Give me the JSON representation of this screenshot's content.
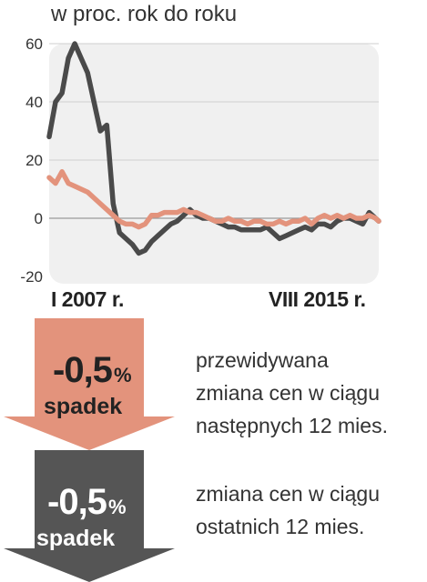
{
  "subtitle": "w proc. rok do roku",
  "colors": {
    "dark_series": "#4a4a4a",
    "light_series": "#e3937c",
    "plot_bg": "#f0f0f0",
    "arrow_pink": "#e3937c",
    "arrow_dark": "#555555"
  },
  "chart_data": {
    "type": "line",
    "title": "",
    "ylabel": "w proc. rok do roku",
    "ylim": [
      -20,
      60
    ],
    "yticks": [
      -20,
      0,
      20,
      40,
      60
    ],
    "ytick_labels": [
      "-20",
      "0",
      "20",
      "40",
      "60"
    ],
    "grid": true,
    "x_start_label": "I 2007 r.",
    "x_end_label": "VIII 2015 r.",
    "x": [
      0,
      2,
      4,
      6,
      8,
      10,
      12,
      14,
      16,
      18,
      20,
      22,
      24,
      26,
      28,
      30,
      32,
      34,
      36,
      38,
      40,
      42,
      44,
      46,
      48,
      50,
      52,
      54,
      56,
      58,
      60,
      62,
      64,
      66,
      68,
      70,
      72,
      74,
      76,
      78,
      80,
      82,
      84,
      86,
      88,
      90,
      92,
      94,
      96,
      98,
      100,
      102,
      103
    ],
    "series": [
      {
        "values": [
          28,
          40,
          43,
          55,
          60,
          55,
          50,
          40,
          30,
          32,
          5,
          -5,
          -7,
          -9,
          -12,
          -11,
          -8,
          -6,
          -4,
          -2,
          -1,
          1,
          3,
          1,
          0,
          0,
          -1,
          -2,
          -3,
          -3,
          -4,
          -4,
          -4,
          -4,
          -3,
          -5,
          -7,
          -6,
          -5,
          -4,
          -3,
          -4,
          -2,
          -2,
          -3,
          -1,
          0,
          0,
          -1,
          -2,
          2,
          0,
          -1
        ]
      },
      {
        "values": [
          14,
          12,
          16,
          12,
          11,
          10,
          9,
          7,
          5,
          3,
          1,
          -1,
          -2,
          -2,
          -3,
          -2,
          1,
          1,
          2,
          2,
          2,
          3,
          2,
          2,
          1,
          0,
          -1,
          -1,
          0,
          -1,
          -1,
          -2,
          -1,
          -1,
          -2,
          -2,
          -1,
          -2,
          -1,
          -1,
          0,
          -2,
          0,
          1,
          0,
          1,
          0,
          1,
          0,
          0,
          1,
          0,
          -1
        ]
      }
    ]
  },
  "badges": [
    {
      "value": "-0,5",
      "unit": "%",
      "word": "spadek",
      "description_lines": [
        "przewidywana",
        "zmiana cen w ciągu",
        "następnych 12 mies."
      ]
    },
    {
      "value": "-0,5",
      "unit": "%",
      "word": "spadek",
      "description_lines": [
        "zmiana cen w ciągu",
        "ostatnich 12 mies."
      ]
    }
  ]
}
